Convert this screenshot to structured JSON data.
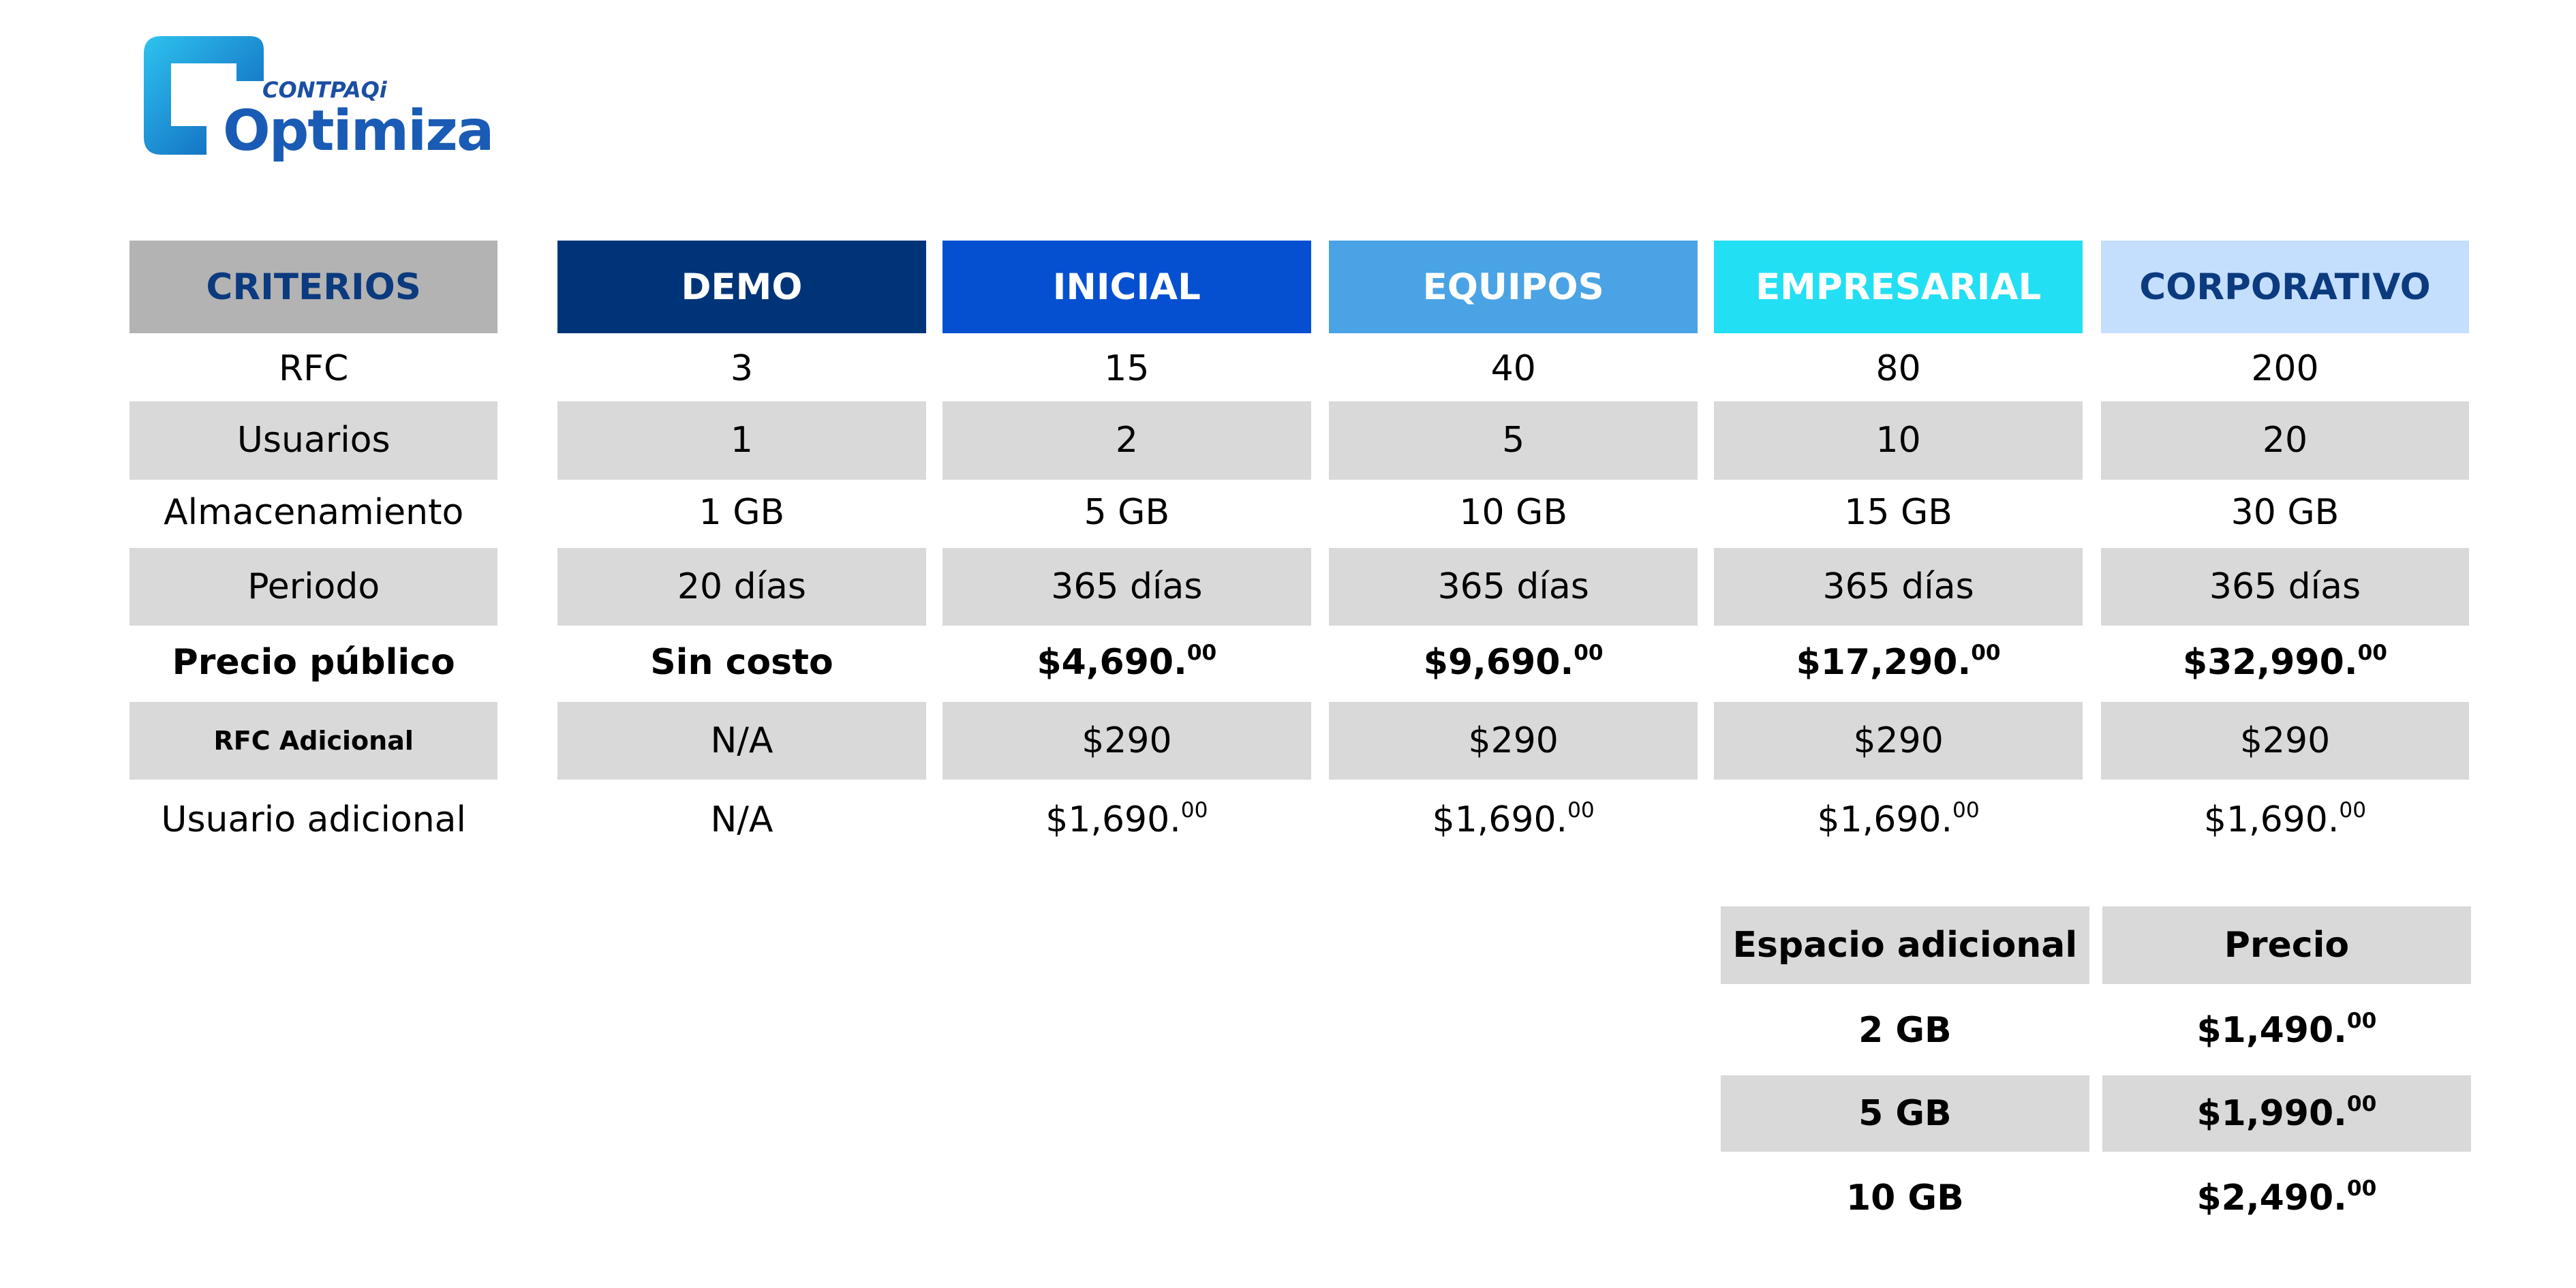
{
  "logo": {
    "brand": "CONTPAQi",
    "product": "Optimiza"
  },
  "plans_table": {
    "header": [
      "CRITERIOS",
      "DEMO",
      "INICIAL",
      "EQUIPOS",
      "EMPRESARIAL",
      "CORPORATIVO"
    ],
    "rows": [
      [
        "RFC",
        "3",
        "15",
        "40",
        "80",
        "200"
      ],
      [
        "Usuarios",
        "1",
        "2",
        "5",
        "10",
        "20"
      ],
      [
        "Almacenamiento",
        "1 GB",
        "5 GB",
        "10 GB",
        "15 GB",
        "30 GB"
      ],
      [
        "Periodo",
        "20 días",
        "365 días",
        "365 días",
        "365 días",
        "365 días"
      ],
      [
        "Precio público",
        "Sin costo",
        {
          "main": "$4,690.",
          "cents": "00"
        },
        {
          "main": "$9,690.",
          "cents": "00"
        },
        {
          "main": "$17,290.",
          "cents": "00"
        },
        {
          "main": "$32,990.",
          "cents": "00"
        }
      ],
      [
        "RFC Adicional",
        "N/A",
        "$290",
        "$290",
        "$290",
        "$290"
      ],
      [
        "Usuario adicional",
        "N/A",
        {
          "main": "$1,690.",
          "cents": "00"
        },
        {
          "main": "$1,690.",
          "cents": "00"
        },
        {
          "main": "$1,690.",
          "cents": "00"
        },
        {
          "main": "$1,690.",
          "cents": "00"
        }
      ]
    ]
  },
  "storage_table": {
    "header": [
      "Espacio adicional",
      "Precio"
    ],
    "rows": [
      [
        "2 GB",
        {
          "main": "$1,490.",
          "cents": "00"
        }
      ],
      [
        "5 GB",
        {
          "main": "$1,990.",
          "cents": "00"
        }
      ],
      [
        "10 GB",
        {
          "main": "$2,490.",
          "cents": "00"
        }
      ]
    ]
  }
}
